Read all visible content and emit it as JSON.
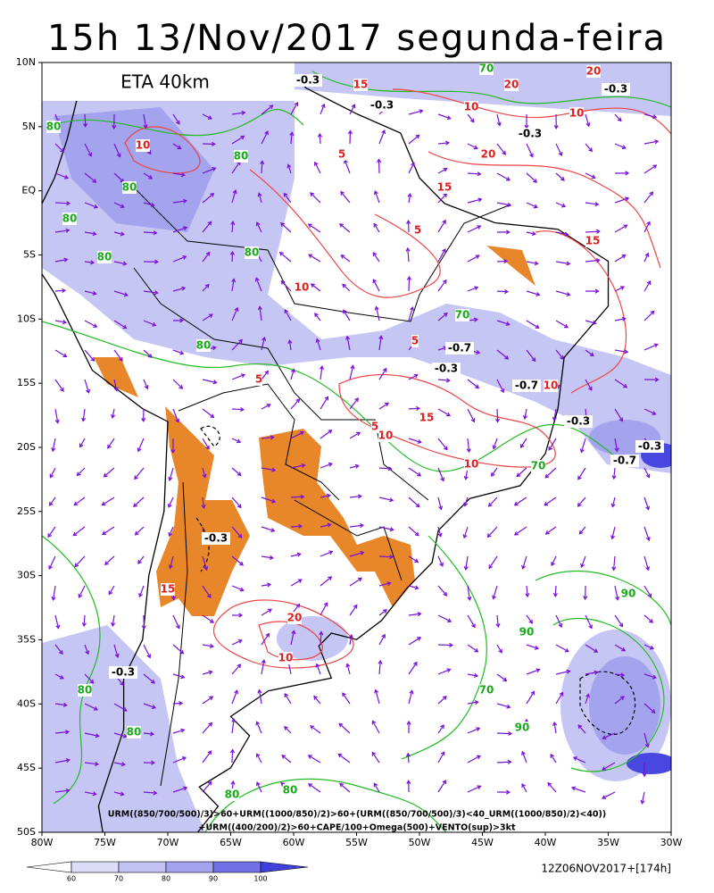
{
  "header": {
    "title": "15h 13/Nov/2017 segunda-feira",
    "model": "ETA 40km"
  },
  "map": {
    "lat_labels": [
      "10N",
      "5N",
      "EQ",
      "5S",
      "10S",
      "15S",
      "20S",
      "25S",
      "30S",
      "35S",
      "40S",
      "45S",
      "50S"
    ],
    "lon_labels": [
      "80W",
      "75W",
      "70W",
      "65W",
      "60W",
      "55W",
      "50W",
      "45W",
      "40W",
      "35W",
      "30W"
    ],
    "contour_labels": [
      "-0.3",
      "-0.3",
      "-0.3",
      "-0.3",
      "-0.7",
      "-0.3",
      "-0.7",
      "-0.3",
      "-0.3",
      "-0.7",
      "-0.3",
      "-0.3",
      "80",
      "80",
      "80",
      "80",
      "80",
      "80",
      "80",
      "80",
      "80",
      "80",
      "80",
      "70",
      "70",
      "70",
      "70",
      "90",
      "90",
      "90",
      "10",
      "10",
      "10",
      "10",
      "10",
      "10",
      "10",
      "10",
      "15",
      "15",
      "15",
      "15",
      "15",
      "20",
      "20",
      "20",
      "20",
      "5",
      "5",
      "5",
      "5",
      "5"
    ],
    "caption": [
      "URM((850/700/500)/3)>60+URM((1000/850)/2)>60+(URM((850/700/500)/3)<40_URM((1000/850)/2)<40))",
      "+URM((400/200)/2)>60+CAPE/100+Omega(500)+VENTO(sup)>3kt"
    ]
  },
  "legend": {
    "labels": [
      "60",
      "70",
      "80",
      "90",
      "100"
    ],
    "run": "12Z06NOV2017+[174h]"
  }
}
